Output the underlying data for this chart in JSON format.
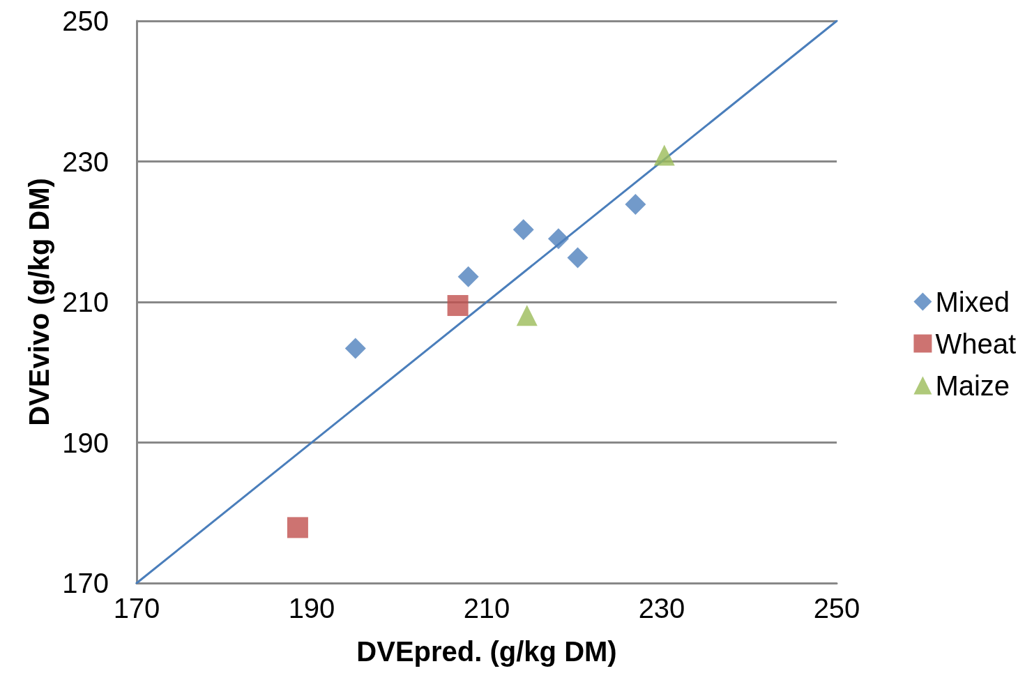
{
  "chart_data": {
    "type": "scatter",
    "xlabel": "DVEpred. (g/kg DM)",
    "ylabel": "DVEvivo (g/kg DM)",
    "xlim": [
      170,
      250
    ],
    "xticks": [
      170,
      190,
      210,
      230,
      250
    ],
    "ylim": [
      170,
      250
    ],
    "yticks": [
      170,
      190,
      210,
      230,
      250
    ],
    "grid": "y",
    "legend": "right",
    "series": [
      {
        "name": "Mixed",
        "color": "#4f81bd",
        "marker": "diamond",
        "x": [
          195.0,
          207.9,
          214.2,
          218.2,
          220.4,
          227.0
        ],
        "values": [
          203.4,
          213.6,
          220.3,
          219.0,
          216.3,
          223.9
        ]
      },
      {
        "name": "Wheat",
        "color": "#c0504d",
        "marker": "square",
        "x": [
          188.4,
          206.7
        ],
        "values": [
          177.9,
          209.5
        ]
      },
      {
        "name": "Maize",
        "color": "#9bbb59",
        "marker": "triangle",
        "x": [
          214.6,
          230.3
        ],
        "values": [
          208.1,
          230.9
        ]
      },
      {
        "type": "line",
        "color": "#4a7ebb",
        "marker": "none",
        "line_style": "solid",
        "x": [
          170,
          250
        ],
        "values": [
          170,
          250
        ]
      }
    ]
  }
}
